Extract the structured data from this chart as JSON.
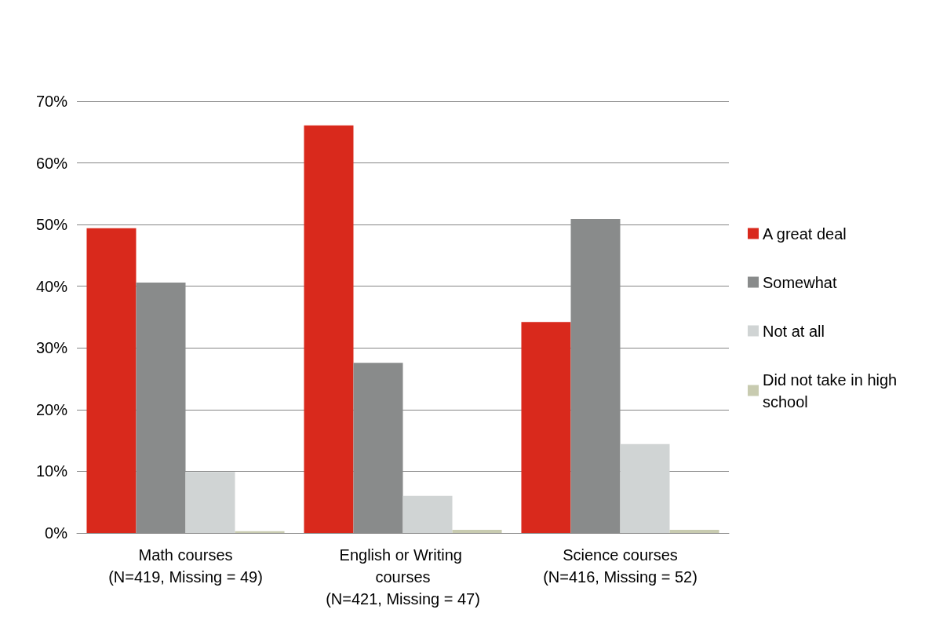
{
  "chart_data": {
    "type": "bar",
    "categories": [
      "Math courses\n(N=419, Missing = 49)",
      "English or Writing courses\n(N=421, Missing = 47)",
      "Science courses\n(N=416, Missing = 52)"
    ],
    "series": [
      {
        "name": "A great deal",
        "color": "#d9291c",
        "values": [
          49.4,
          66.1,
          34.2
        ]
      },
      {
        "name": "Somewhat",
        "color": "#898b8b",
        "values": [
          40.6,
          27.6,
          50.9
        ]
      },
      {
        "name": "Not at all",
        "color": "#d0d4d4",
        "values": [
          9.9,
          6.0,
          14.4
        ]
      },
      {
        "name": "Did not take in high school",
        "color": "#c8cbb0",
        "values": [
          0.3,
          0.5,
          0.5
        ]
      }
    ],
    "ylim": [
      0,
      70
    ],
    "yticks": [
      {
        "value": 0,
        "label": "0%"
      },
      {
        "value": 10,
        "label": "10%"
      },
      {
        "value": 20,
        "label": "20%"
      },
      {
        "value": 30,
        "label": "30%"
      },
      {
        "value": 40,
        "label": "40%"
      },
      {
        "value": 50,
        "label": "50%"
      },
      {
        "value": 60,
        "label": "60%"
      },
      {
        "value": 70,
        "label": "70%"
      }
    ],
    "grid": "y",
    "legend": "right"
  }
}
